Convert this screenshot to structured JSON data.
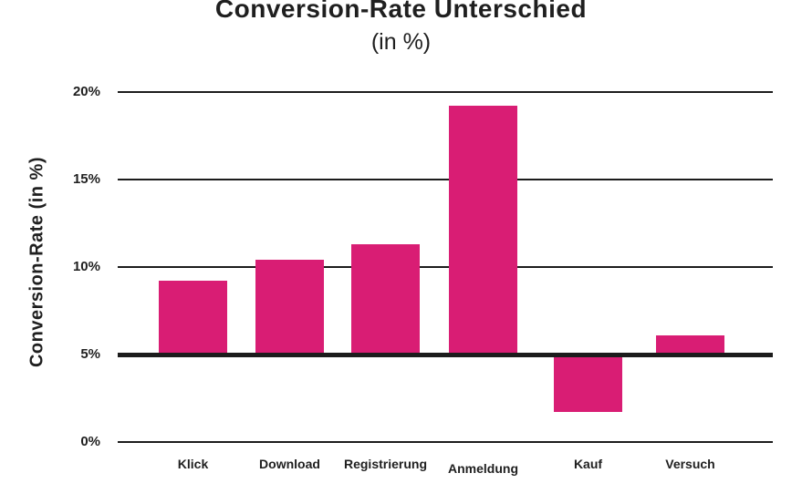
{
  "title": "Conversion-Rate Unterschied",
  "subtitle": "(in %)",
  "colors": {
    "bar": "#d91d74",
    "axis": "#1c1c1c",
    "text": "#1f1f1f",
    "background": "#ffffff"
  },
  "chart_data": {
    "type": "bar",
    "title": "Conversion-Rate Unterschied",
    "subtitle": "(in %)",
    "ylabel": "Conversion-Rate (in %)",
    "xlabel": "",
    "categories": [
      "Klick",
      "Download",
      "Registrierung",
      "Anmeldung",
      "Kauf",
      "Versuch"
    ],
    "values": [
      9.2,
      10.4,
      11.3,
      19.2,
      1.7,
      6.1
    ],
    "baseline": 5,
    "ylim": [
      0,
      20
    ],
    "ytick_values": [
      0,
      5,
      10,
      15,
      20
    ],
    "ytick_labels": [
      "0%",
      "5%",
      "10%",
      "15%",
      "20%"
    ],
    "grid": "horizontal-only",
    "legend": "none",
    "bar_color": "#d91d74",
    "notes": "bars are drawn from a thick baseline axis at 5%; Kauf falls below the baseline"
  }
}
